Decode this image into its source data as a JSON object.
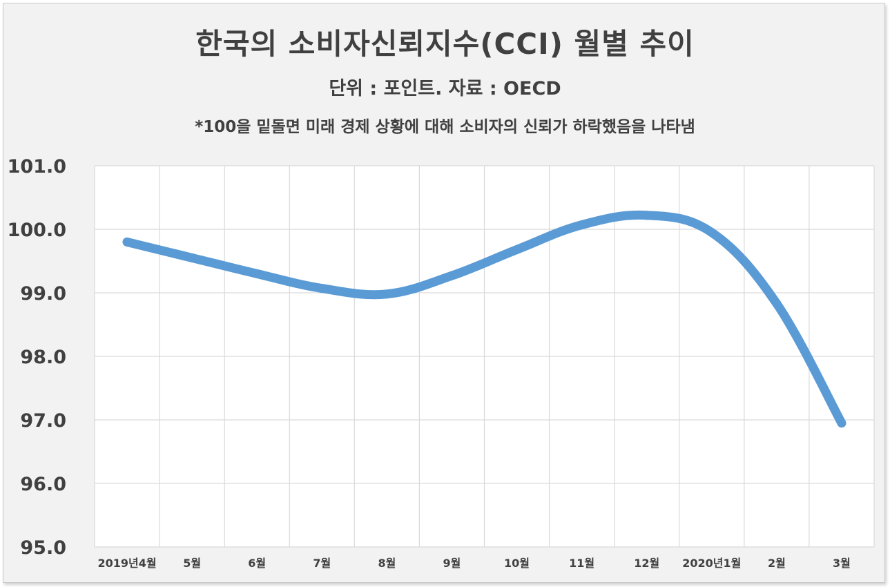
{
  "header": {
    "title": "한국의 소비자신뢰지수(CCI) 월별 추이",
    "subtitle": "단위 : 포인트. 자료 : OECD",
    "note": "*100을 밑돌면 미래 경제 상황에 대해 소비자의 신뢰가 하락했음을 나타냄"
  },
  "chart_data": {
    "type": "line",
    "title": "한국의 소비자신뢰지수(CCI) 월별 추이",
    "subtitle": "단위 : 포인트. 자료 : OECD",
    "categories": [
      "2019년4월",
      "5월",
      "6월",
      "7월",
      "8월",
      "9월",
      "10월",
      "11월",
      "12월",
      "2020년1월",
      "2월",
      "3월"
    ],
    "series": [
      {
        "values": [
          99.8,
          99.55,
          99.3,
          99.07,
          98.98,
          99.27,
          99.68,
          100.07,
          100.22,
          99.95,
          98.83,
          96.95
        ],
        "color": "#5b9bd5"
      }
    ],
    "ylim": [
      95.0,
      101.0
    ],
    "yticks": [
      "95.0",
      "96.0",
      "97.0",
      "98.0",
      "99.0",
      "100.0",
      "101.0"
    ],
    "grid": true,
    "legend": "none"
  }
}
